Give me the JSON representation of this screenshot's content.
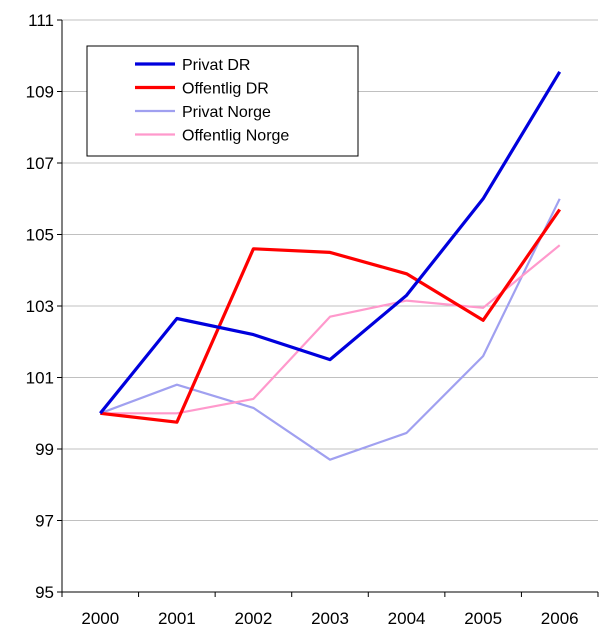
{
  "chart_data": {
    "type": "line",
    "title": "",
    "xlabel": "",
    "ylabel": "",
    "categories": [
      "2000",
      "2001",
      "2002",
      "2003",
      "2004",
      "2005",
      "2006"
    ],
    "ylim": [
      95,
      111
    ],
    "yticks": [
      95,
      97,
      99,
      101,
      103,
      105,
      107,
      109,
      111
    ],
    "grid": "horizontal",
    "legend_position": "top-left",
    "series": [
      {
        "name": "Privat DR",
        "color": "#0000dd",
        "values": [
          100.0,
          102.65,
          102.2,
          101.5,
          103.3,
          106.0,
          109.55
        ]
      },
      {
        "name": "Offentlig DR",
        "color": "#ff0000",
        "values": [
          100.0,
          99.75,
          104.6,
          104.5,
          103.9,
          102.6,
          105.7
        ]
      },
      {
        "name": "Privat Norge",
        "color": "#a0a0f0",
        "values": [
          100.0,
          100.8,
          100.15,
          98.7,
          99.45,
          101.6,
          106.0
        ]
      },
      {
        "name": "Offentlig Norge",
        "color": "#ff99cc",
        "values": [
          100.0,
          100.0,
          100.4,
          102.7,
          103.15,
          102.95,
          104.7
        ]
      }
    ]
  }
}
